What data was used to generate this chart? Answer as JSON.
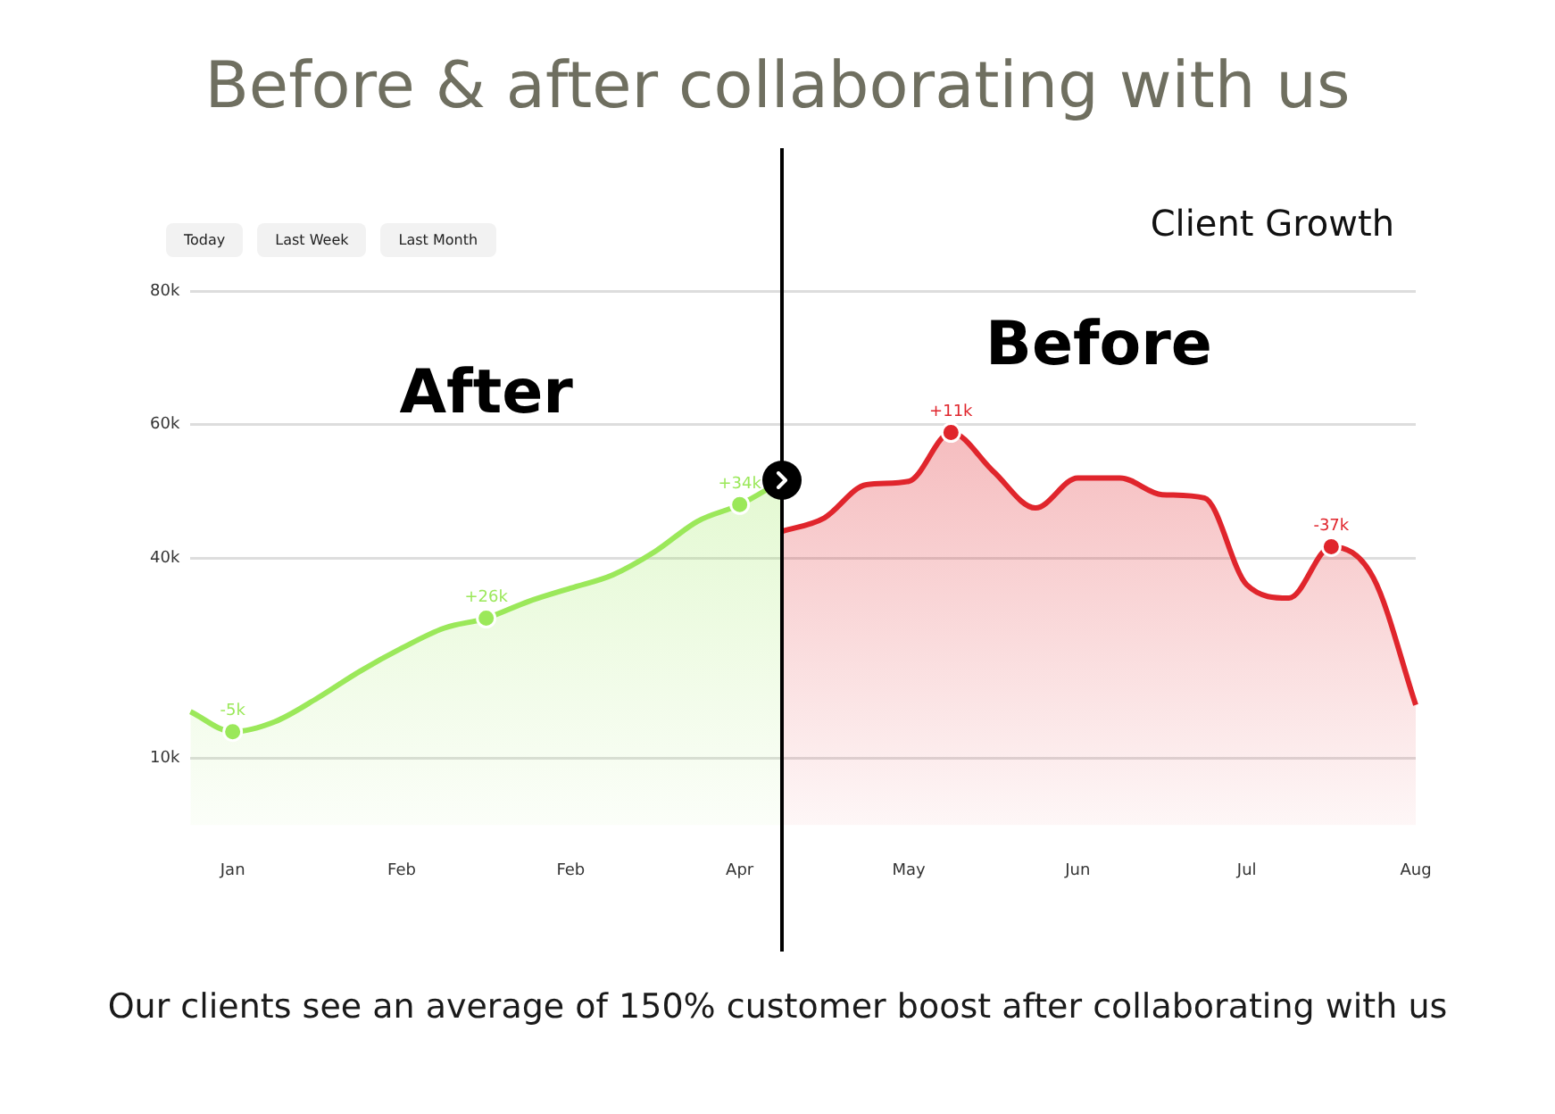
{
  "chart_data": {
    "type": "area",
    "title": "Before & after collaborating with us",
    "subtitle": "Client Growth",
    "categories": [
      null,
      "Jan",
      null,
      null,
      null,
      "Feb",
      null,
      null,
      null,
      "Feb",
      null,
      null,
      null,
      "Apr",
      null,
      null,
      null,
      "May",
      null,
      null,
      null,
      "Jun",
      null,
      null,
      null,
      "Jul",
      null,
      null,
      null,
      "Aug"
    ],
    "ylim": [
      0,
      80
    ],
    "yticks": [
      {
        "value": 10,
        "label": "10k"
      },
      {
        "value": 40,
        "label": "40k"
      },
      {
        "value": 60,
        "label": "60k"
      },
      {
        "value": 80,
        "label": "80k"
      }
    ],
    "grid": "y",
    "legend": false,
    "series": [
      {
        "name": "After",
        "color": "#9be85a",
        "values": [
          17,
          14,
          15.5,
          19,
          23,
          26.5,
          29.5,
          31,
          33.5,
          35.5,
          37.5,
          41,
          45.5,
          48,
          51.6,
          null,
          null,
          null,
          null,
          null,
          null,
          null,
          null,
          null,
          null,
          null,
          null,
          null,
          null,
          null
        ]
      },
      {
        "name": "Before",
        "color": "#e0252c",
        "values": [
          null,
          null,
          null,
          null,
          null,
          null,
          null,
          null,
          null,
          null,
          null,
          null,
          null,
          null,
          44,
          46,
          51,
          51.5,
          58.8,
          53,
          47.5,
          52,
          52,
          49.5,
          49,
          36,
          34,
          41.7,
          37,
          18
        ]
      }
    ],
    "annotations": [
      "Today",
      "Last Week",
      "Last Month",
      {
        "text": "-5k",
        "y": 14
      },
      {
        "text": "+26k",
        "y": 31
      },
      {
        "text": "+34k",
        "y": 48
      },
      {
        "text": "+11k",
        "y": 58.8
      },
      {
        "text": "-37k",
        "y": 41.7
      },
      "Our clients see an average of 150% customer boost after collaborating with us"
    ]
  }
}
